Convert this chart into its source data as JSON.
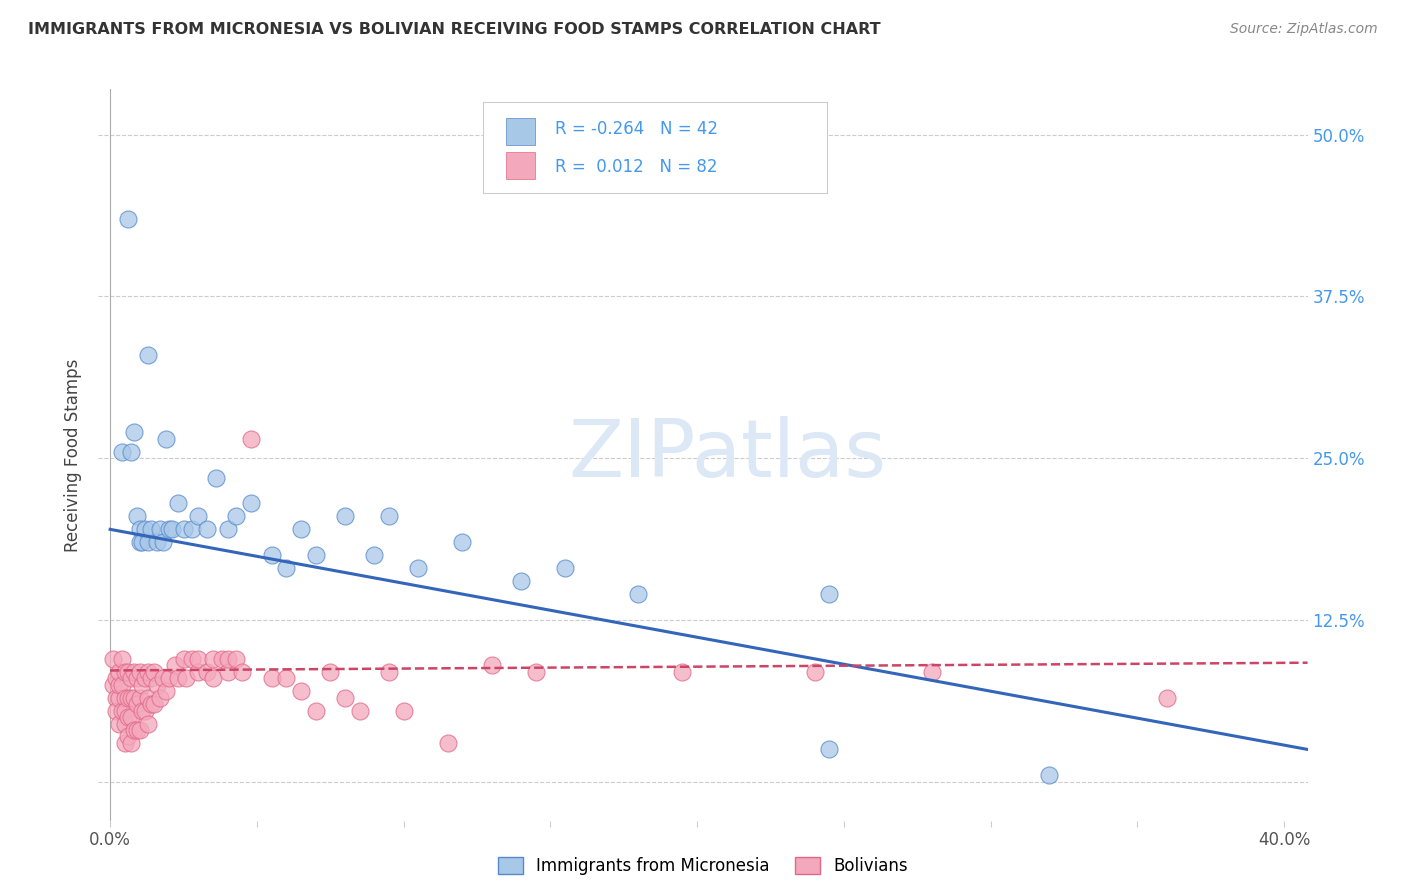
{
  "title": "IMMIGRANTS FROM MICRONESIA VS BOLIVIAN RECEIVING FOOD STAMPS CORRELATION CHART",
  "source": "Source: ZipAtlas.com",
  "ylabel": "Receiving Food Stamps",
  "xlim": [
    -0.004,
    0.408
  ],
  "ylim": [
    -0.03,
    0.535
  ],
  "yticks": [
    0.0,
    0.125,
    0.25,
    0.375,
    0.5
  ],
  "ytick_labels_right": [
    "",
    "12.5%",
    "25.0%",
    "37.5%",
    "50.0%"
  ],
  "xtick_positions": [
    0.0,
    0.05,
    0.1,
    0.15,
    0.2,
    0.25,
    0.3,
    0.35,
    0.4
  ],
  "xtick_labels": [
    "0.0%",
    "",
    "",
    "",
    "",
    "",
    "",
    "",
    "40.0%"
  ],
  "micronesia_color": "#a8c8e8",
  "bolivian_color": "#f4a8bc",
  "micronesia_edge": "#5588cc",
  "bolivian_edge": "#e06888",
  "trend_micronesia_color": "#3366bb",
  "trend_bolivian_color": "#cc4466",
  "legend_micronesia_label": "Immigrants from Micronesia",
  "legend_bolivian_label": "Bolivians",
  "R_micronesia": -0.264,
  "N_micronesia": 42,
  "R_bolivian": 0.012,
  "N_bolivian": 82,
  "background_color": "#ffffff",
  "grid_color": "#cccccc",
  "right_axis_color": "#4499ee",
  "mic_trend_x": [
    0.0,
    0.408
  ],
  "mic_trend_y": [
    0.195,
    0.025
  ],
  "bol_trend_x": [
    0.0,
    0.408
  ],
  "bol_trend_y": [
    0.086,
    0.092
  ],
  "mic_x": [
    0.006,
    0.013,
    0.019,
    0.004,
    0.007,
    0.008,
    0.009,
    0.01,
    0.01,
    0.011,
    0.012,
    0.013,
    0.014,
    0.016,
    0.017,
    0.018,
    0.02,
    0.021,
    0.023,
    0.025,
    0.028,
    0.03,
    0.033,
    0.036,
    0.04,
    0.043,
    0.048,
    0.055,
    0.06,
    0.065,
    0.07,
    0.08,
    0.09,
    0.095,
    0.105,
    0.12,
    0.14,
    0.155,
    0.18,
    0.245,
    0.245,
    0.32
  ],
  "mic_y": [
    0.435,
    0.33,
    0.265,
    0.255,
    0.255,
    0.27,
    0.205,
    0.195,
    0.185,
    0.185,
    0.195,
    0.185,
    0.195,
    0.185,
    0.195,
    0.185,
    0.195,
    0.195,
    0.215,
    0.195,
    0.195,
    0.205,
    0.195,
    0.235,
    0.195,
    0.205,
    0.215,
    0.175,
    0.165,
    0.195,
    0.175,
    0.205,
    0.175,
    0.205,
    0.165,
    0.185,
    0.155,
    0.165,
    0.145,
    0.025,
    0.145,
    0.005
  ],
  "bol_x": [
    0.001,
    0.001,
    0.002,
    0.002,
    0.002,
    0.003,
    0.003,
    0.003,
    0.003,
    0.004,
    0.004,
    0.004,
    0.005,
    0.005,
    0.005,
    0.005,
    0.005,
    0.006,
    0.006,
    0.006,
    0.006,
    0.007,
    0.007,
    0.007,
    0.007,
    0.008,
    0.008,
    0.008,
    0.009,
    0.009,
    0.009,
    0.01,
    0.01,
    0.01,
    0.011,
    0.011,
    0.012,
    0.012,
    0.013,
    0.013,
    0.013,
    0.014,
    0.014,
    0.015,
    0.015,
    0.016,
    0.017,
    0.018,
    0.019,
    0.02,
    0.022,
    0.023,
    0.025,
    0.026,
    0.028,
    0.03,
    0.03,
    0.033,
    0.035,
    0.035,
    0.038,
    0.04,
    0.04,
    0.043,
    0.045,
    0.048,
    0.055,
    0.06,
    0.065,
    0.07,
    0.075,
    0.08,
    0.085,
    0.095,
    0.1,
    0.115,
    0.13,
    0.145,
    0.195,
    0.24,
    0.28,
    0.36
  ],
  "bol_y": [
    0.095,
    0.075,
    0.065,
    0.08,
    0.055,
    0.065,
    0.075,
    0.085,
    0.045,
    0.095,
    0.075,
    0.055,
    0.085,
    0.065,
    0.055,
    0.045,
    0.03,
    0.085,
    0.065,
    0.05,
    0.035,
    0.08,
    0.065,
    0.05,
    0.03,
    0.085,
    0.065,
    0.04,
    0.08,
    0.06,
    0.04,
    0.085,
    0.065,
    0.04,
    0.075,
    0.055,
    0.08,
    0.055,
    0.085,
    0.065,
    0.045,
    0.08,
    0.06,
    0.085,
    0.06,
    0.075,
    0.065,
    0.08,
    0.07,
    0.08,
    0.09,
    0.08,
    0.095,
    0.08,
    0.095,
    0.085,
    0.095,
    0.085,
    0.08,
    0.095,
    0.095,
    0.085,
    0.095,
    0.095,
    0.085,
    0.265,
    0.08,
    0.08,
    0.07,
    0.055,
    0.085,
    0.065,
    0.055,
    0.085,
    0.055,
    0.03,
    0.09,
    0.085,
    0.085,
    0.085,
    0.085,
    0.065
  ]
}
